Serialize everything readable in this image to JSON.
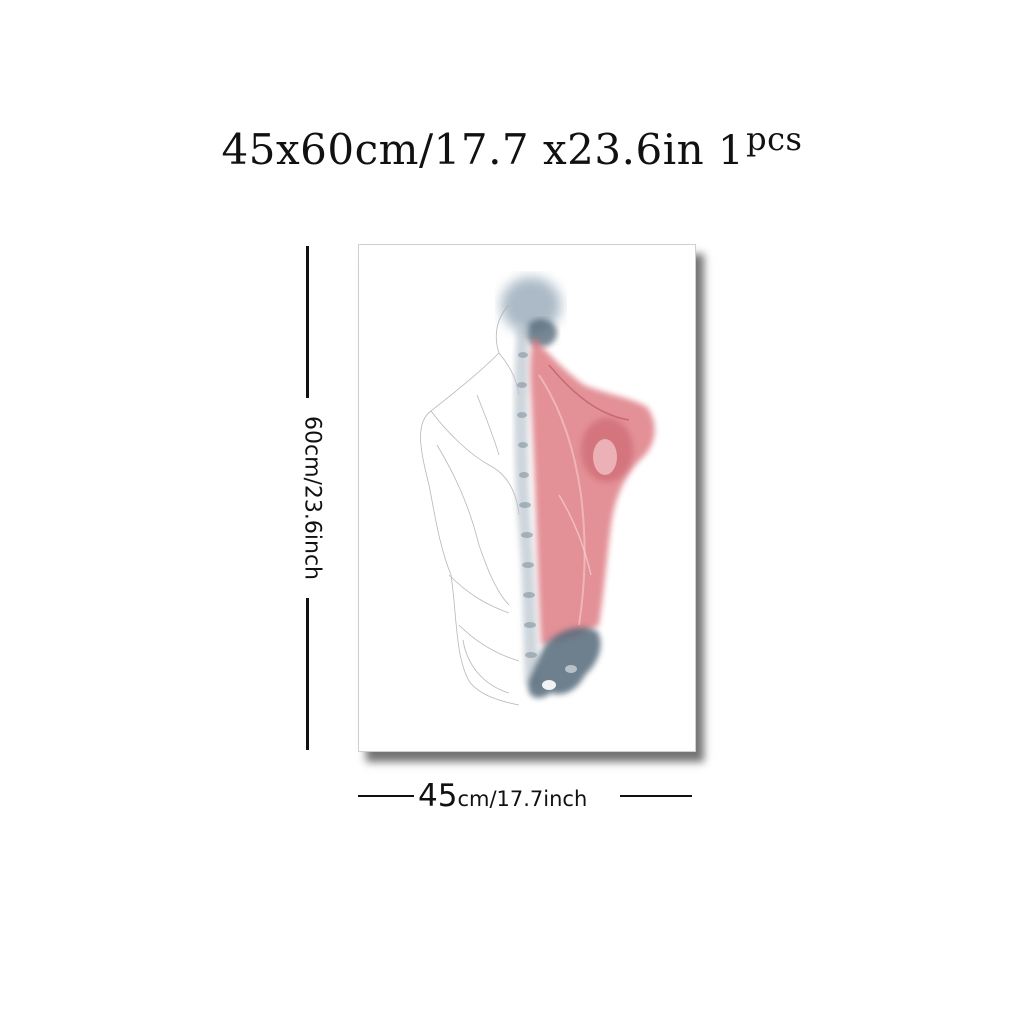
{
  "headline": {
    "dimensions": "45x60cm/17.7 x23.6in",
    "count": "1",
    "unit": "pcs"
  },
  "height_label": "60cm/23.6inch",
  "width_label": {
    "number": "45",
    "rest": "cm/17.7inch"
  },
  "colors": {
    "muscle": "#d9707a",
    "bone": "#5f7688",
    "sketch": "#9a9a9a"
  }
}
